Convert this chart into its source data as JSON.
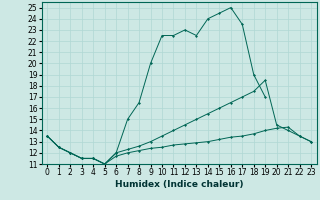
{
  "xlabel": "Humidex (Indice chaleur)",
  "bg_color": "#cde8e4",
  "grid_color": "#b0d8d4",
  "line_color": "#006655",
  "xlim": [
    -0.5,
    23.5
  ],
  "ylim": [
    11,
    25.5
  ],
  "line1_x": [
    0,
    1,
    2,
    3,
    4,
    5,
    6,
    7,
    8,
    9,
    10,
    11,
    12,
    13,
    14,
    15,
    16,
    17,
    18,
    19
  ],
  "line1_y": [
    13.5,
    12.5,
    12.0,
    11.5,
    11.5,
    11.0,
    12.0,
    15.0,
    16.5,
    20.0,
    22.5,
    22.5,
    23.0,
    22.5,
    24.0,
    24.5,
    25.0,
    23.5,
    19.0,
    17.0
  ],
  "line2_x": [
    0,
    1,
    2,
    3,
    4,
    5,
    6,
    7,
    8,
    9,
    10,
    11,
    12,
    13,
    14,
    15,
    16,
    17,
    18,
    19,
    20,
    21,
    22,
    23
  ],
  "line2_y": [
    13.5,
    12.5,
    12.0,
    11.5,
    11.5,
    11.0,
    12.0,
    12.3,
    12.6,
    13.0,
    13.5,
    14.0,
    14.5,
    15.0,
    15.5,
    16.0,
    16.5,
    17.0,
    17.5,
    18.5,
    14.5,
    14.0,
    13.5,
    13.0
  ],
  "line3_x": [
    0,
    1,
    2,
    3,
    4,
    5,
    6,
    7,
    8,
    9,
    10,
    11,
    12,
    13,
    14,
    15,
    16,
    17,
    18,
    19,
    20,
    21,
    22,
    23
  ],
  "line3_y": [
    13.5,
    12.5,
    12.0,
    11.5,
    11.5,
    11.0,
    11.7,
    12.0,
    12.2,
    12.4,
    12.5,
    12.7,
    12.8,
    12.9,
    13.0,
    13.2,
    13.4,
    13.5,
    13.7,
    14.0,
    14.2,
    14.3,
    13.5,
    13.0
  ],
  "xtick_fontsize": 5.5,
  "ytick_fontsize": 5.5,
  "xlabel_fontsize": 6.5
}
